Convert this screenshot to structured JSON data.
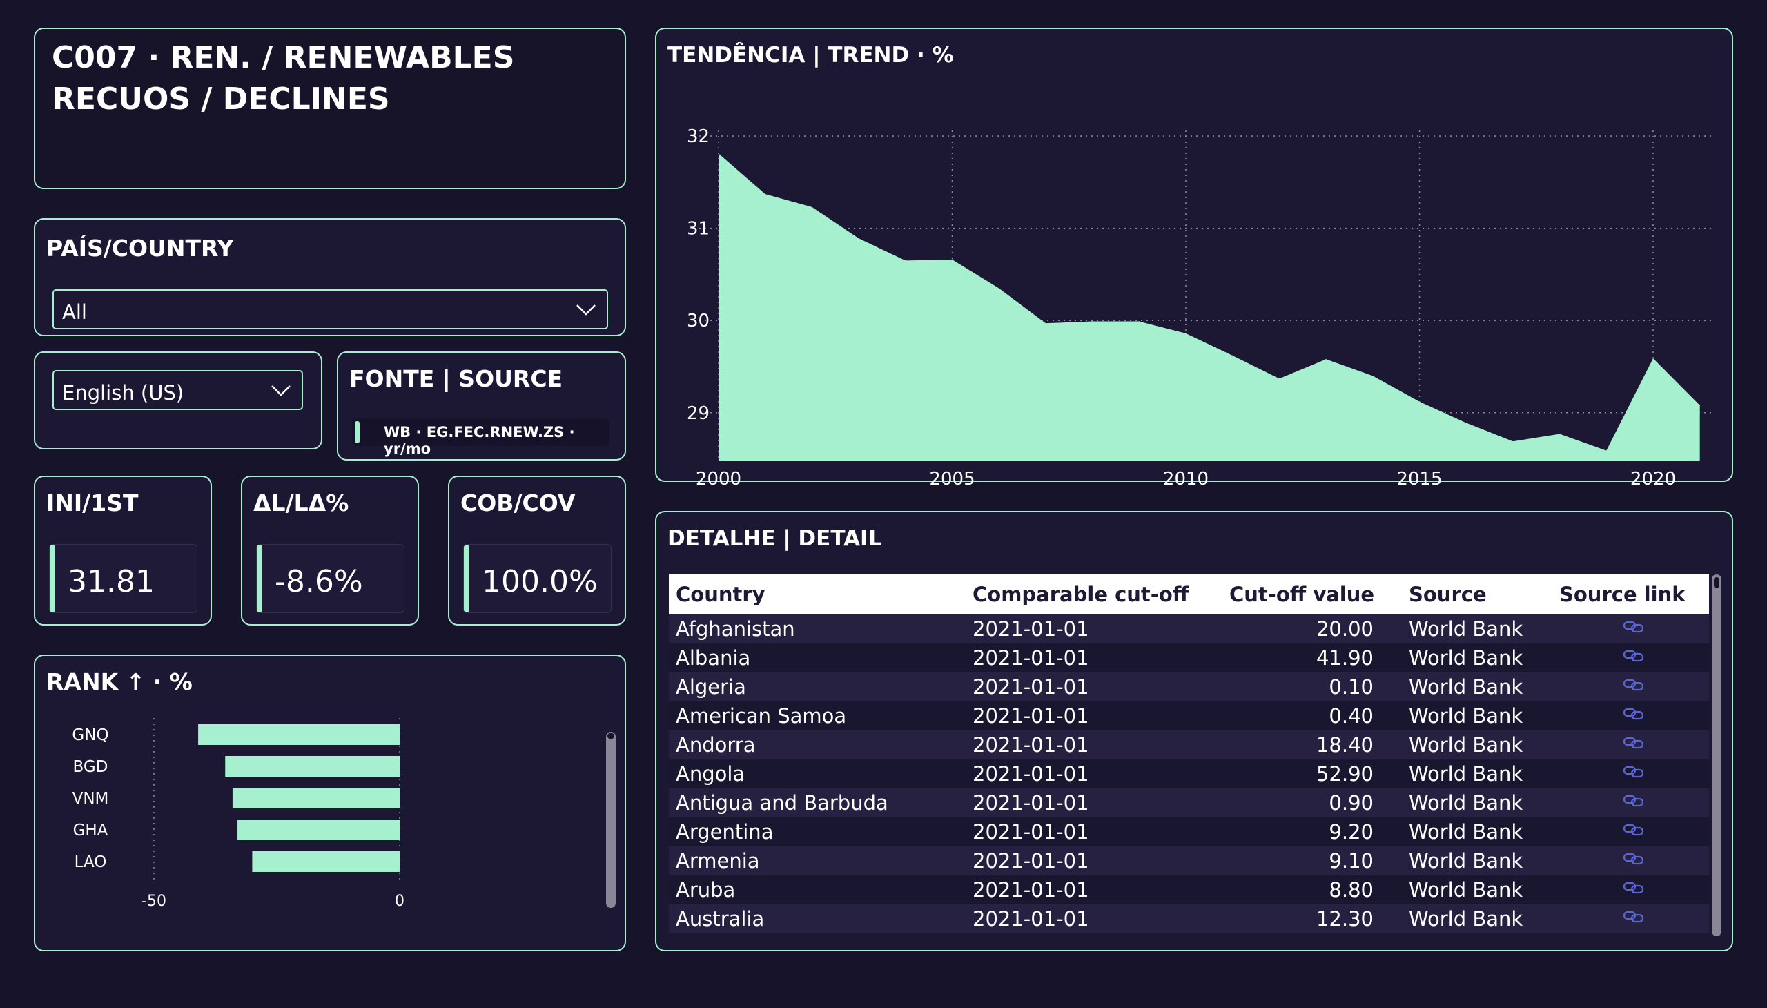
{
  "header": {
    "title_line1": "C007 · REN. / RENEWABLES",
    "title_line2": "RECUOS / DECLINES"
  },
  "country_filter": {
    "title": "PAÍS/COUNTRY",
    "selected": "All",
    "icon": "chevron-down-icon"
  },
  "language_filter": {
    "selected": "English (US)",
    "icon": "chevron-down-icon"
  },
  "source": {
    "title": "FONTE | SOURCE",
    "text": "WB · EG.FEC.RNEW.ZS · yr/mo"
  },
  "kpis": [
    {
      "label": "INI/1ST",
      "value": "31.81"
    },
    {
      "label": "ΔL/LΔ%",
      "value": "-8.6%"
    },
    {
      "label": "COB/COV",
      "value": "100.0%"
    }
  ],
  "colors": {
    "accent": "#a6f0d0",
    "background": "#16132a",
    "panel": "#1c1833",
    "link": "#5b66d6"
  },
  "rank_chart": {
    "title": "RANK ↑ · %",
    "chart_data": {
      "type": "bar",
      "orientation": "horizontal",
      "categories": [
        "GNQ",
        "BGD",
        "VNM",
        "GHA",
        "LAO"
      ],
      "values": [
        -41,
        -35.5,
        -34,
        -33,
        -30
      ],
      "x_ticks": [
        "-50",
        "0"
      ],
      "xlim": [
        -50,
        0
      ],
      "grid": "vertical-dotted"
    }
  },
  "trend_chart": {
    "title": "TENDÊNCIA | TREND · %",
    "chart_data": {
      "type": "area",
      "x": [
        2000,
        2001,
        2002,
        2003,
        2004,
        2005,
        2006,
        2007,
        2008,
        2009,
        2010,
        2011,
        2012,
        2013,
        2014,
        2015,
        2016,
        2017,
        2018,
        2019,
        2020,
        2021
      ],
      "values": [
        31.81,
        31.37,
        31.23,
        30.89,
        30.65,
        30.66,
        30.35,
        29.97,
        29.99,
        29.99,
        29.86,
        29.62,
        29.37,
        29.58,
        29.4,
        29.12,
        28.89,
        28.69,
        28.77,
        28.59,
        29.59,
        29.08
      ],
      "x_ticks": [
        "2000",
        "2005",
        "2010",
        "2015",
        "2020"
      ],
      "y_ticks": [
        "29",
        "30",
        "31",
        "32"
      ],
      "ylim": [
        28.5,
        32
      ],
      "grid": true
    }
  },
  "detail": {
    "title": "DETALHE | DETAIL",
    "columns": [
      "Country",
      "Comparable cut-off",
      "Cut-off value",
      "Source",
      "Source link"
    ],
    "link_icon": "link-icon",
    "rows": [
      {
        "country": "Afghanistan",
        "cutoff": "2021-01-01",
        "value": "20.00",
        "source": "World Bank"
      },
      {
        "country": "Albania",
        "cutoff": "2021-01-01",
        "value": "41.90",
        "source": "World Bank"
      },
      {
        "country": "Algeria",
        "cutoff": "2021-01-01",
        "value": "0.10",
        "source": "World Bank"
      },
      {
        "country": "American Samoa",
        "cutoff": "2021-01-01",
        "value": "0.40",
        "source": "World Bank"
      },
      {
        "country": "Andorra",
        "cutoff": "2021-01-01",
        "value": "18.40",
        "source": "World Bank"
      },
      {
        "country": "Angola",
        "cutoff": "2021-01-01",
        "value": "52.90",
        "source": "World Bank"
      },
      {
        "country": "Antigua and Barbuda",
        "cutoff": "2021-01-01",
        "value": "0.90",
        "source": "World Bank"
      },
      {
        "country": "Argentina",
        "cutoff": "2021-01-01",
        "value": "9.20",
        "source": "World Bank"
      },
      {
        "country": "Armenia",
        "cutoff": "2021-01-01",
        "value": "9.10",
        "source": "World Bank"
      },
      {
        "country": "Aruba",
        "cutoff": "2021-01-01",
        "value": "8.80",
        "source": "World Bank"
      },
      {
        "country": "Australia",
        "cutoff": "2021-01-01",
        "value": "12.30",
        "source": "World Bank"
      }
    ]
  }
}
